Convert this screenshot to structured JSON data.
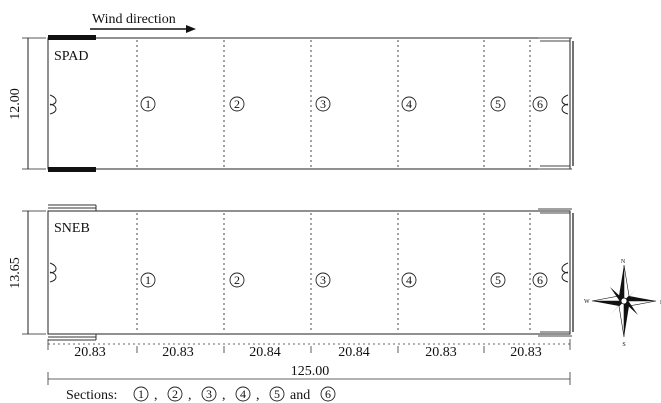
{
  "wind_label": "Wind direction",
  "houses": [
    {
      "name": "SPAD",
      "height_label": "12.00",
      "section_numbers": [
        "1",
        "2",
        "3",
        "4",
        "5",
        "6"
      ]
    },
    {
      "name": "SNEB",
      "height_label": "13.65",
      "section_numbers": [
        "1",
        "2",
        "3",
        "4",
        "5",
        "6"
      ]
    }
  ],
  "segment_lengths": [
    "20.83",
    "20.83",
    "20.84",
    "20.84",
    "20.83",
    "20.83"
  ],
  "total_length": "125.00",
  "legend": {
    "prefix": "Sections:",
    "numbers": [
      "1",
      "2",
      "3",
      "4",
      "5",
      "6"
    ],
    "separators": [
      ",",
      ",",
      ",",
      ",",
      "and"
    ]
  },
  "compass": {
    "n": "N",
    "s": "S",
    "e": "E",
    "w": "W"
  }
}
